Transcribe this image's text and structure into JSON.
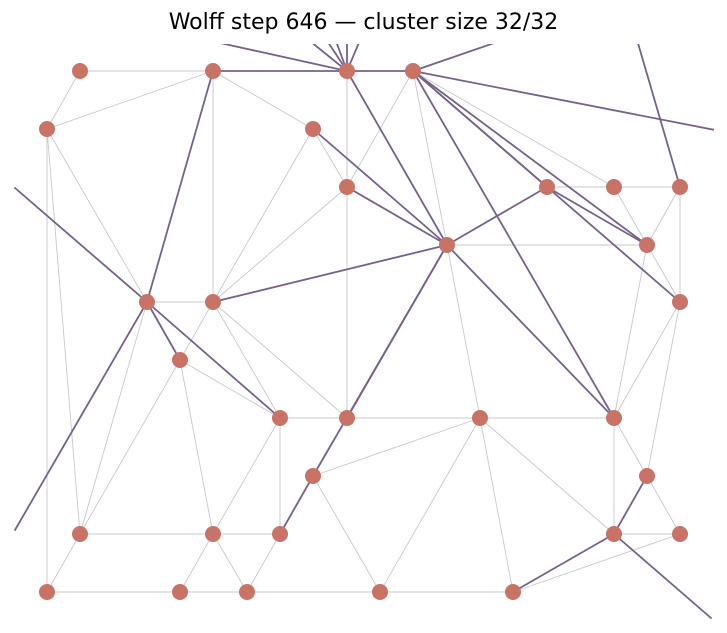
{
  "title": "Wolff step 646 — cluster size 32/32",
  "colors": {
    "node": "#c87366",
    "cluster_edge": "#76628a",
    "lattice_edge": "#c8c8c8",
    "background": "#ffffff"
  }
}
